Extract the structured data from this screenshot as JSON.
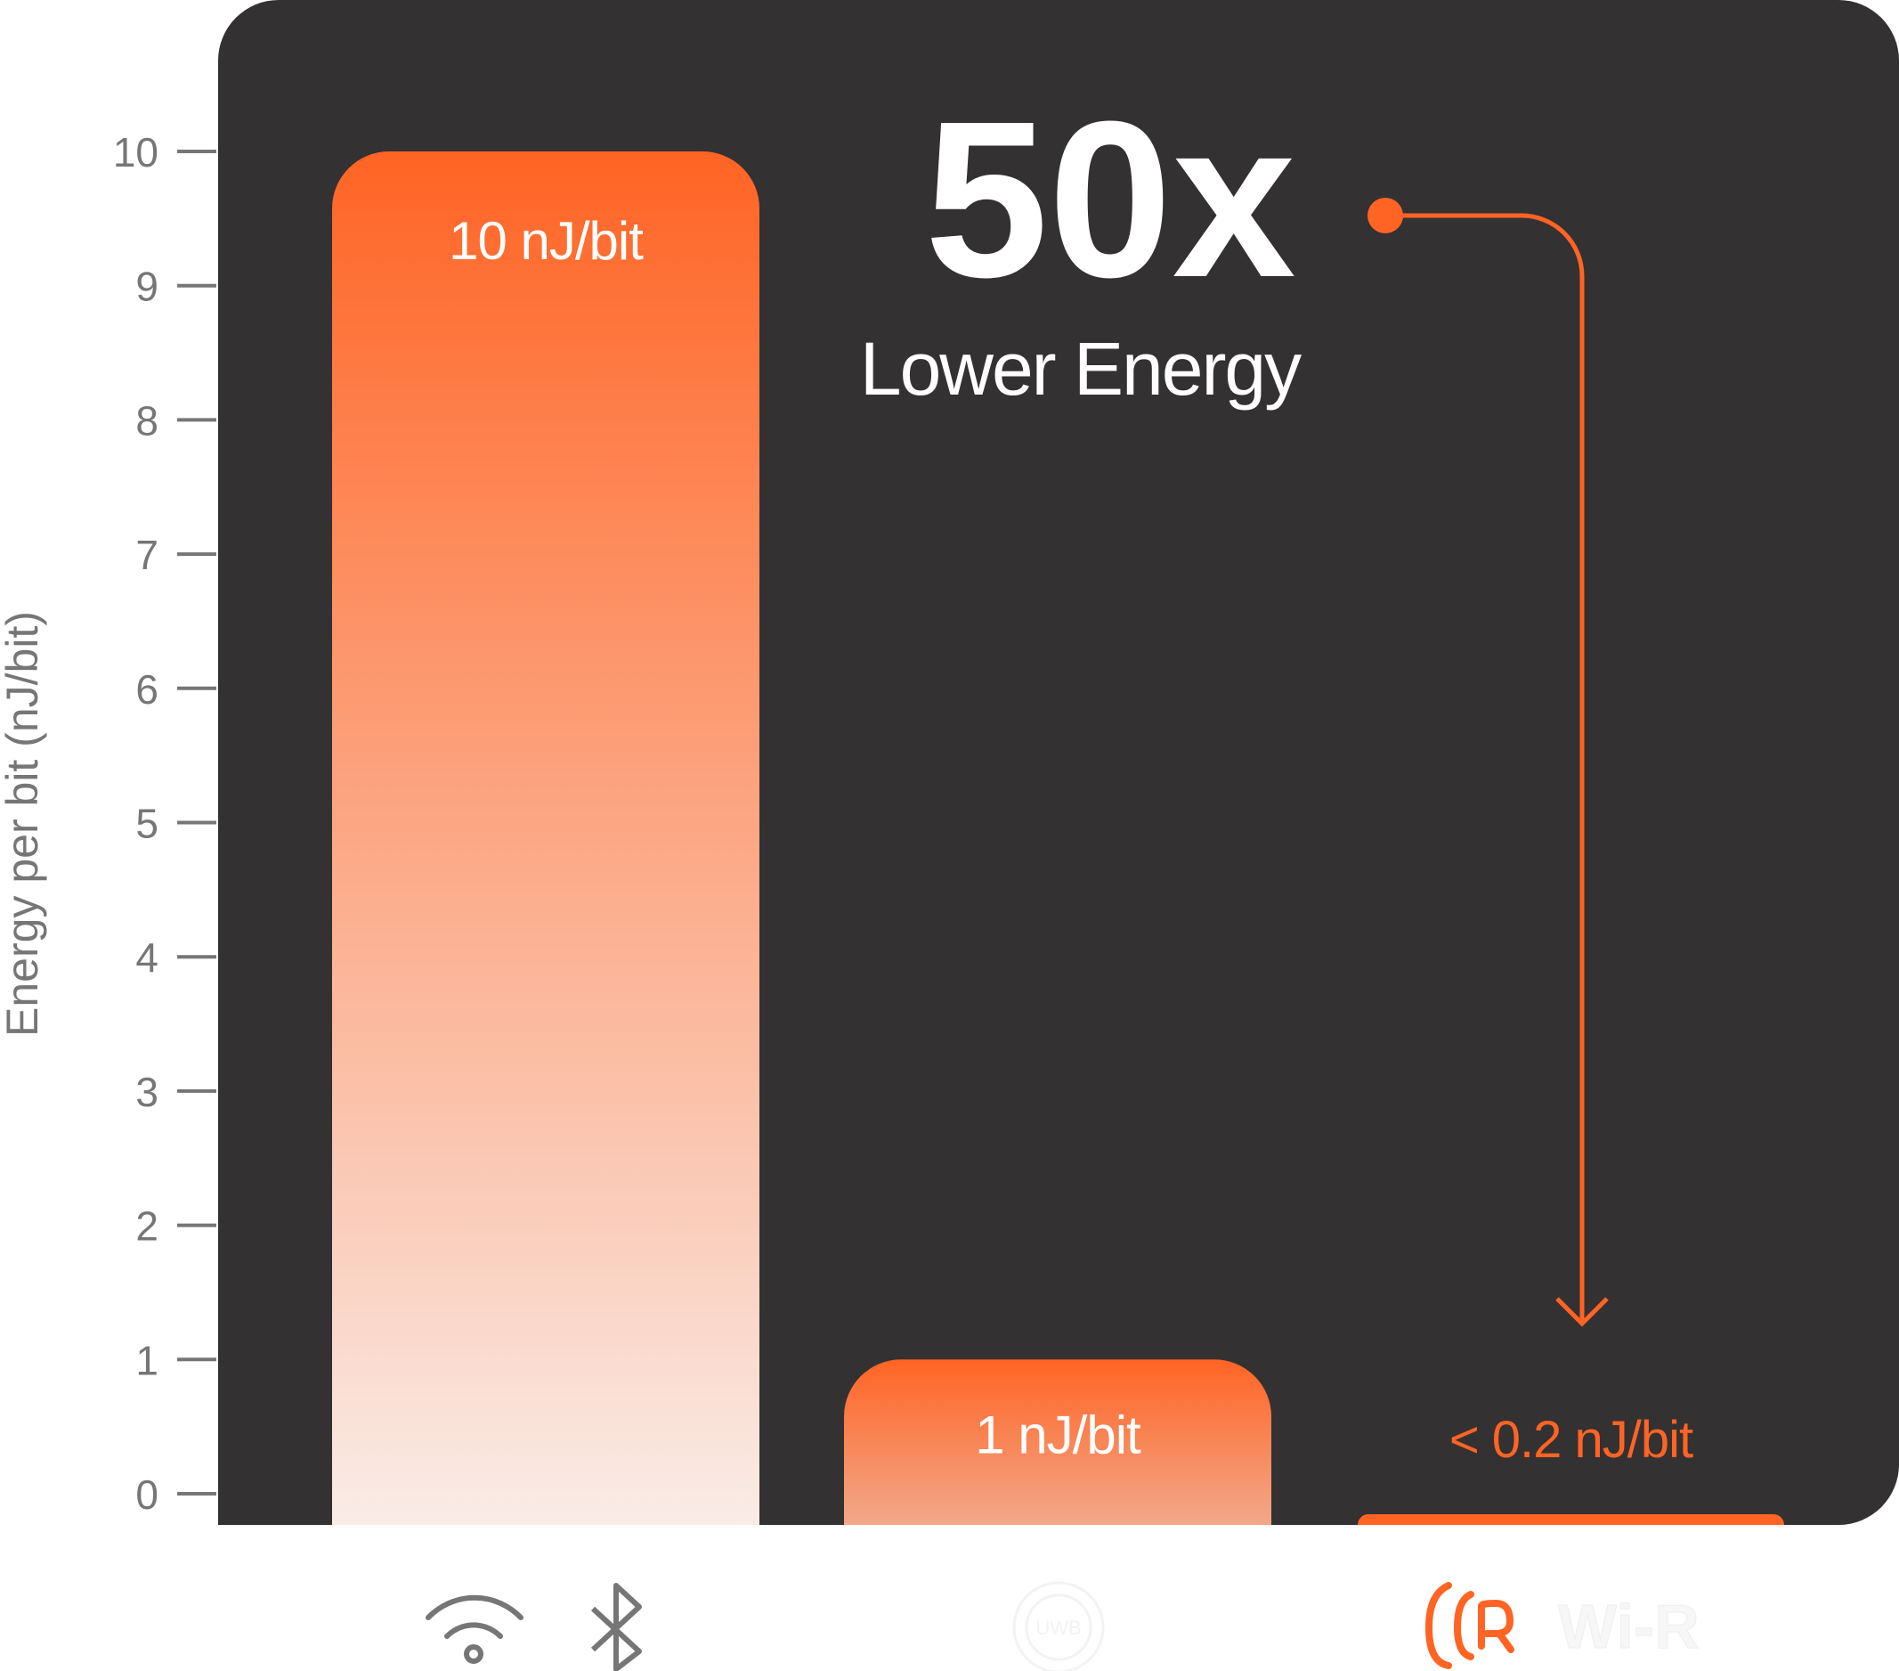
{
  "chart_data": {
    "type": "bar",
    "ylabel": "Energy per bit (nJ/bit)",
    "ylim": [
      0,
      10
    ],
    "yticks": [
      "0",
      "1",
      "2",
      "3",
      "4",
      "5",
      "6",
      "7",
      "8",
      "9",
      "10"
    ],
    "categories": [
      "Wi-Fi / Bluetooth",
      "UWB",
      "Wi-R"
    ],
    "values": [
      10,
      1,
      0.07
    ],
    "data_labels": [
      "10 nJ/bit",
      "1 nJ/bit",
      "< 0.2 nJ/bit"
    ],
    "grid": false,
    "annotation": {
      "headline": "50x",
      "subtitle": "Lower Energy"
    }
  },
  "icons": [
    "wifi-icon",
    "bluetooth-icon",
    "uwb-logo",
    "wi-r-logo"
  ],
  "logos": {
    "uwb": "UWB",
    "wir": "Wi-R"
  },
  "colors": {
    "panel": "#333132",
    "accent": "#FF6424",
    "axis": "#767676",
    "text": "#FFFFFF"
  }
}
